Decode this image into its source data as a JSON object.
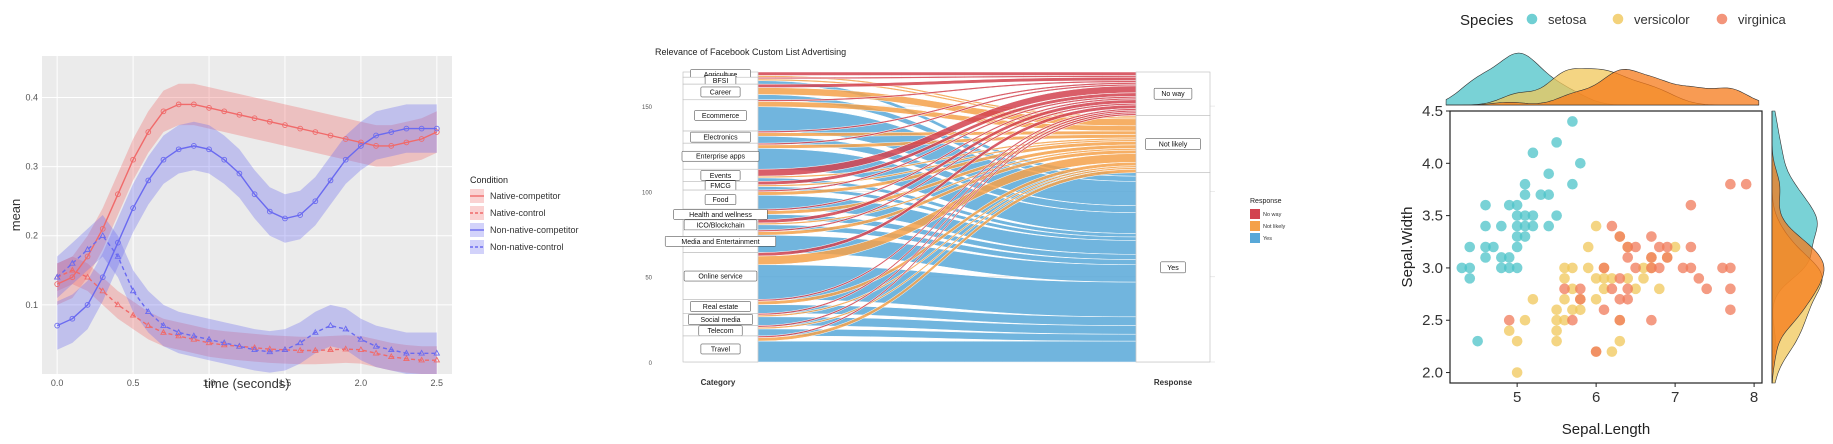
{
  "colors": {
    "native": "#f06a6a",
    "nonnative": "#6a6af0",
    "panel_bg": "#ebebeb",
    "no_way": "#d2424f",
    "not_likely": "#f4a14a",
    "yes": "#58a8d8",
    "setosa": "#4cc3c8",
    "versicolor": "#f0c75a",
    "virginica": "#f07a5a",
    "virginica_fill": "#f57a1a"
  },
  "chart_data": [
    {
      "type": "line",
      "title": "",
      "xlabel": "time (seconds)",
      "ylabel": "mean",
      "xlim": [
        -0.1,
        2.6
      ],
      "ylim": [
        0.0,
        0.46
      ],
      "x_ticks": [
        "0.0",
        "0.5",
        "1.0",
        "1.5",
        "2.0",
        "2.5"
      ],
      "y_ticks": [
        "0.1",
        "0.2",
        "0.3",
        "0.4"
      ],
      "grid": true,
      "legend_title": "Condition",
      "legend_position": "right",
      "x": [
        0.0,
        0.1,
        0.2,
        0.3,
        0.4,
        0.5,
        0.6,
        0.7,
        0.8,
        0.9,
        1.0,
        1.1,
        1.2,
        1.3,
        1.4,
        1.5,
        1.6,
        1.7,
        1.8,
        1.9,
        2.0,
        2.1,
        2.2,
        2.3,
        2.4,
        2.5
      ],
      "series": [
        {
          "name": "Native-competitor",
          "values": [
            0.13,
            0.14,
            0.17,
            0.21,
            0.26,
            0.31,
            0.35,
            0.38,
            0.39,
            0.39,
            0.385,
            0.38,
            0.375,
            0.37,
            0.365,
            0.36,
            0.355,
            0.35,
            0.345,
            0.34,
            0.335,
            0.33,
            0.33,
            0.335,
            0.34,
            0.35
          ],
          "band": 0.03
        },
        {
          "name": "Native-control",
          "values": [
            0.14,
            0.15,
            0.14,
            0.12,
            0.1,
            0.085,
            0.07,
            0.06,
            0.055,
            0.05,
            0.045,
            0.042,
            0.04,
            0.038,
            0.036,
            0.035,
            0.034,
            0.034,
            0.035,
            0.036,
            0.035,
            0.03,
            0.025,
            0.022,
            0.02,
            0.02
          ],
          "band": 0.02
        },
        {
          "name": "Non-native-competitor",
          "values": [
            0.07,
            0.08,
            0.1,
            0.14,
            0.19,
            0.24,
            0.28,
            0.31,
            0.325,
            0.33,
            0.325,
            0.31,
            0.29,
            0.26,
            0.235,
            0.225,
            0.23,
            0.25,
            0.28,
            0.31,
            0.33,
            0.345,
            0.35,
            0.355,
            0.355,
            0.355
          ],
          "band": 0.035
        },
        {
          "name": "Non-native-control",
          "values": [
            0.14,
            0.16,
            0.18,
            0.2,
            0.17,
            0.12,
            0.09,
            0.07,
            0.06,
            0.055,
            0.05,
            0.045,
            0.04,
            0.035,
            0.032,
            0.035,
            0.045,
            0.06,
            0.07,
            0.065,
            0.05,
            0.04,
            0.035,
            0.03,
            0.03,
            0.03
          ],
          "band": 0.03
        }
      ]
    },
    {
      "type": "alluvial",
      "title": "Relevance of Facebook Custom List Advertising",
      "xlabel_left": "Category",
      "xlabel_right": "Response",
      "legend_title": "Response",
      "legend_position": "right",
      "y_ticks": [
        "0",
        "50",
        "100",
        "150"
      ],
      "ylim": [
        0,
        170
      ],
      "categories": [
        "Agriculture",
        "BFSI",
        "Career",
        "Ecommerce",
        "Electronics",
        "Enterprise apps",
        "Events",
        "FMCG",
        "Food",
        "Health and wellness",
        "ICO/Blockchain",
        "Media and Entertainment",
        "Online service",
        "Real estate",
        "Social media",
        "Telecom",
        "Travel"
      ],
      "responses": [
        "No way",
        "Not likely",
        "Yes"
      ],
      "flows": [
        {
          "category": "Agriculture",
          "no_way": 2,
          "not_likely": 1,
          "yes": 0
        },
        {
          "category": "BFSI",
          "no_way": 1,
          "not_likely": 1,
          "yes": 2
        },
        {
          "category": "Career",
          "no_way": 2,
          "not_likely": 4,
          "yes": 3
        },
        {
          "category": "Ecommerce",
          "no_way": 1,
          "not_likely": 3,
          "yes": 14
        },
        {
          "category": "Electronics",
          "no_way": 1,
          "not_likely": 2,
          "yes": 4
        },
        {
          "category": "Enterprise apps",
          "no_way": 1,
          "not_likely": 2,
          "yes": 12
        },
        {
          "category": "Events",
          "no_way": 4,
          "not_likely": 1,
          "yes": 2
        },
        {
          "category": "FMCG",
          "no_way": 2,
          "not_likely": 1,
          "yes": 2
        },
        {
          "category": "Food",
          "no_way": 1,
          "not_likely": 2,
          "yes": 8
        },
        {
          "category": "Health and wellness",
          "no_way": 1,
          "not_likely": 2,
          "yes": 3
        },
        {
          "category": "ICO/Blockchain",
          "no_way": 2,
          "not_likely": 1,
          "yes": 3
        },
        {
          "category": "Media and Entertainment",
          "no_way": 1,
          "not_likely": 2,
          "yes": 10
        },
        {
          "category": "Online service",
          "no_way": 2,
          "not_likely": 5,
          "yes": 20
        },
        {
          "category": "Real estate",
          "no_way": 1,
          "not_likely": 2,
          "yes": 5
        },
        {
          "category": "Social media",
          "no_way": 1,
          "not_likely": 1,
          "yes": 5
        },
        {
          "category": "Telecom",
          "no_way": 1,
          "not_likely": 1,
          "yes": 4
        },
        {
          "category": "Travel",
          "no_way": 1,
          "not_likely": 2,
          "yes": 12
        }
      ]
    },
    {
      "type": "scatter",
      "title": "",
      "xlabel": "Sepal.Length",
      "ylabel": "Sepal.Width",
      "xlim": [
        4.15,
        8.1
      ],
      "ylim": [
        1.9,
        4.5
      ],
      "x_ticks": [
        5,
        6,
        7,
        8
      ],
      "y_ticks": [
        "2.0",
        "2.5",
        "3.0",
        "3.5",
        "4.0",
        "4.5"
      ],
      "legend_title": "Species",
      "legend_position": "top",
      "marginal_density": true,
      "series": [
        {
          "name": "setosa",
          "points": [
            [
              4.3,
              3.0
            ],
            [
              4.4,
              2.9
            ],
            [
              4.4,
              3.0
            ],
            [
              4.4,
              3.2
            ],
            [
              4.5,
              2.3
            ],
            [
              4.6,
              3.1
            ],
            [
              4.6,
              3.2
            ],
            [
              4.6,
              3.4
            ],
            [
              4.6,
              3.6
            ],
            [
              4.7,
              3.2
            ],
            [
              4.8,
              3.0
            ],
            [
              4.8,
              3.1
            ],
            [
              4.8,
              3.4
            ],
            [
              4.9,
              3.0
            ],
            [
              4.9,
              3.1
            ],
            [
              4.9,
              3.6
            ],
            [
              5.0,
              3.0
            ],
            [
              5.0,
              3.2
            ],
            [
              5.0,
              3.3
            ],
            [
              5.0,
              3.4
            ],
            [
              5.0,
              3.5
            ],
            [
              5.0,
              3.6
            ],
            [
              5.1,
              3.3
            ],
            [
              5.1,
              3.4
            ],
            [
              5.1,
              3.5
            ],
            [
              5.1,
              3.7
            ],
            [
              5.1,
              3.8
            ],
            [
              5.2,
              3.4
            ],
            [
              5.2,
              3.5
            ],
            [
              5.2,
              4.1
            ],
            [
              5.3,
              3.7
            ],
            [
              5.4,
              3.4
            ],
            [
              5.4,
              3.7
            ],
            [
              5.4,
              3.9
            ],
            [
              5.5,
              3.5
            ],
            [
              5.5,
              4.2
            ],
            [
              5.7,
              3.8
            ],
            [
              5.7,
              4.4
            ],
            [
              5.8,
              4.0
            ]
          ]
        },
        {
          "name": "versicolor",
          "points": [
            [
              4.9,
              2.4
            ],
            [
              5.0,
              2.0
            ],
            [
              5.0,
              2.3
            ],
            [
              5.1,
              2.5
            ],
            [
              5.2,
              2.7
            ],
            [
              5.5,
              2.3
            ],
            [
              5.5,
              2.4
            ],
            [
              5.5,
              2.5
            ],
            [
              5.5,
              2.6
            ],
            [
              5.6,
              2.5
            ],
            [
              5.6,
              2.7
            ],
            [
              5.6,
              2.9
            ],
            [
              5.6,
              3.0
            ],
            [
              5.7,
              2.6
            ],
            [
              5.7,
              2.8
            ],
            [
              5.7,
              3.0
            ],
            [
              5.8,
              2.6
            ],
            [
              5.8,
              2.7
            ],
            [
              5.9,
              3.0
            ],
            [
              5.9,
              3.2
            ],
            [
              6.0,
              2.2
            ],
            [
              6.0,
              2.7
            ],
            [
              6.0,
              2.9
            ],
            [
              6.0,
              3.4
            ],
            [
              6.1,
              2.8
            ],
            [
              6.1,
              2.9
            ],
            [
              6.1,
              3.0
            ],
            [
              6.2,
              2.2
            ],
            [
              6.2,
              2.9
            ],
            [
              6.3,
              2.3
            ],
            [
              6.3,
              2.5
            ],
            [
              6.3,
              3.3
            ],
            [
              6.4,
              2.9
            ],
            [
              6.4,
              3.2
            ],
            [
              6.5,
              2.8
            ],
            [
              6.6,
              2.9
            ],
            [
              6.6,
              3.0
            ],
            [
              6.7,
              3.0
            ],
            [
              6.7,
              3.1
            ],
            [
              6.8,
              2.8
            ],
            [
              6.9,
              3.1
            ],
            [
              7.0,
              3.2
            ]
          ]
        },
        {
          "name": "virginica",
          "points": [
            [
              4.9,
              2.5
            ],
            [
              5.6,
              2.8
            ],
            [
              5.7,
              2.5
            ],
            [
              5.8,
              2.7
            ],
            [
              5.8,
              2.8
            ],
            [
              6.0,
              2.2
            ],
            [
              6.1,
              2.6
            ],
            [
              6.1,
              3.0
            ],
            [
              6.2,
              2.8
            ],
            [
              6.2,
              3.4
            ],
            [
              6.3,
              2.5
            ],
            [
              6.3,
              2.7
            ],
            [
              6.3,
              2.9
            ],
            [
              6.3,
              3.3
            ],
            [
              6.4,
              2.7
            ],
            [
              6.4,
              2.8
            ],
            [
              6.4,
              3.1
            ],
            [
              6.4,
              3.2
            ],
            [
              6.5,
              3.0
            ],
            [
              6.5,
              3.2
            ],
            [
              6.7,
              2.5
            ],
            [
              6.7,
              3.0
            ],
            [
              6.7,
              3.1
            ],
            [
              6.7,
              3.3
            ],
            [
              6.8,
              3.0
            ],
            [
              6.8,
              3.2
            ],
            [
              6.9,
              3.1
            ],
            [
              6.9,
              3.2
            ],
            [
              7.1,
              3.0
            ],
            [
              7.2,
              3.0
            ],
            [
              7.2,
              3.2
            ],
            [
              7.2,
              3.6
            ],
            [
              7.3,
              2.9
            ],
            [
              7.4,
              2.8
            ],
            [
              7.6,
              3.0
            ],
            [
              7.7,
              2.6
            ],
            [
              7.7,
              2.8
            ],
            [
              7.7,
              3.0
            ],
            [
              7.7,
              3.8
            ],
            [
              7.9,
              3.8
            ]
          ]
        }
      ]
    }
  ]
}
